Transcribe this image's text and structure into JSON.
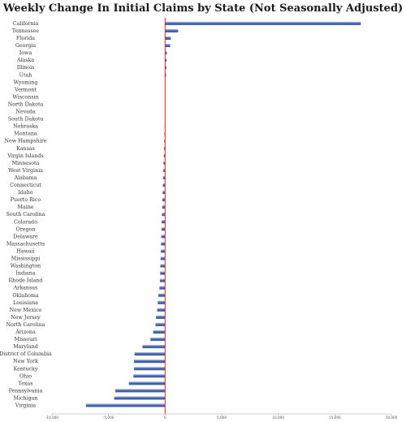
{
  "chart_data": {
    "type": "bar",
    "orientation": "horizontal",
    "title": "Weekly Change In Initial Claims by State (Not Seasonally Adjusted)",
    "xlim": [
      -10000,
      20000
    ],
    "x_ticks": [
      -10000,
      -5000,
      0,
      5000,
      10000,
      15000,
      20000
    ],
    "x_tick_labels": [
      "-10,000",
      "-5,000",
      "0",
      "5,000",
      "10,000",
      "15,000",
      "20,000"
    ],
    "categories": [
      "California",
      "Tennessee",
      "Florida",
      "Georgia",
      "Iowa",
      "Alaska",
      "Illinois",
      "Utah",
      "Wyoming",
      "Vermont",
      "Wisconsin",
      "North Dakota",
      "Nevada",
      "South Dakota",
      "Nebraska",
      "Montana",
      "New Hampshire",
      "Kansas",
      "Virgin Islands",
      "Minnesota",
      "West Virginia",
      "Alabama",
      "Connecticut",
      "Idaho",
      "Puerto Rico",
      "Maine",
      "South Carolina",
      "Colorado",
      "Oregon",
      "Delaware",
      "Massachusetts",
      "Hawaii",
      "Mississippi",
      "Washington",
      "Indiana",
      "Rhode Island",
      "Arkansas",
      "Oklahoma",
      "Louisiana",
      "New Mexico",
      "New Jersey",
      "North Carolina",
      "Arizona",
      "Missouri",
      "Maryland",
      "District of Columbia",
      "New York",
      "Kentucky",
      "Ohio",
      "Texas",
      "Pennsylvania",
      "Michigan",
      "Virginia"
    ],
    "values": [
      17300,
      1150,
      500,
      450,
      150,
      120,
      110,
      90,
      0,
      0,
      0,
      0,
      0,
      0,
      -40,
      -60,
      -80,
      -100,
      -110,
      -140,
      -160,
      -180,
      -200,
      -220,
      -240,
      -260,
      -280,
      -300,
      -320,
      -340,
      -360,
      -380,
      -400,
      -420,
      -440,
      -460,
      -500,
      -600,
      -650,
      -700,
      -800,
      -850,
      -1050,
      -1300,
      -2000,
      -2700,
      -2750,
      -2750,
      -2800,
      -3200,
      -4400,
      -4500,
      -7000
    ],
    "grid": false,
    "colors": {
      "bar": "#3f5fa8",
      "bar_highlight": "#c5d0e8",
      "zero_line": "#d62728",
      "axis": "#999999"
    }
  }
}
